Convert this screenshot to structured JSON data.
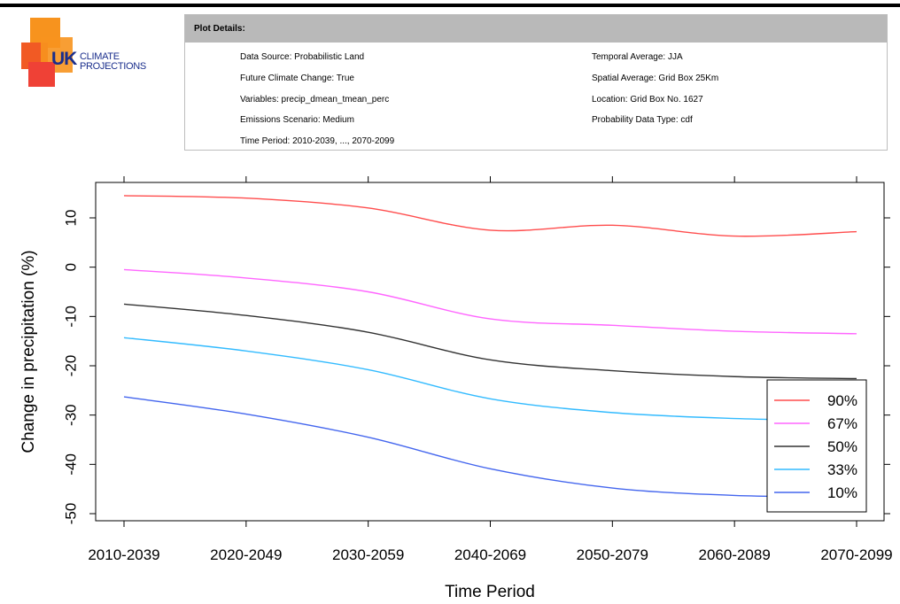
{
  "logo": {
    "uk": "UK",
    "line1": "CLIMATE",
    "line2": "PROJECTIONS",
    "colors": [
      "#f15a24",
      "#f7931e",
      "#ef4136"
    ]
  },
  "details": {
    "title": "Plot Details:",
    "left": [
      "Data Source: Probabilistic Land",
      "Future Climate Change: True",
      "Variables: precip_dmean_tmean_perc",
      "Emissions Scenario: Medium",
      "Time Period: 2010-2039, ..., 2070-2099"
    ],
    "right": [
      "Temporal Average: JJA",
      "Spatial Average: Grid Box 25Km",
      "Location: Grid Box No. 1627",
      "Probability Data Type: cdf"
    ]
  },
  "chart_data": {
    "type": "line",
    "xlabel": "Time Period",
    "ylabel": "Change in precipitation (%)",
    "categories": [
      "2010-2039",
      "2020-2049",
      "2030-2059",
      "2040-2069",
      "2050-2079",
      "2060-2089",
      "2070-2099"
    ],
    "ylim": [
      -52,
      17
    ],
    "yticks": [
      10,
      0,
      -10,
      -20,
      -30,
      -40,
      -50
    ],
    "legend_position": "bottom-right",
    "grid": false,
    "series": [
      {
        "name": "90%",
        "color": "#ff4d4d",
        "values": [
          14.5,
          14.0,
          12.0,
          7.5,
          8.5,
          6.3,
          7.2
        ]
      },
      {
        "name": "67%",
        "color": "#ff66ff",
        "values": [
          -0.5,
          -2.2,
          -5.0,
          -10.5,
          -11.8,
          -13.0,
          -13.5
        ]
      },
      {
        "name": "50%",
        "color": "#333333",
        "values": [
          -7.5,
          -9.8,
          -13.2,
          -18.8,
          -21.0,
          -22.2,
          -22.6
        ]
      },
      {
        "name": "33%",
        "color": "#33bbff",
        "values": [
          -14.3,
          -17.0,
          -20.8,
          -26.7,
          -29.5,
          -30.7,
          -31.2
        ]
      },
      {
        "name": "10%",
        "color": "#4466ee",
        "values": [
          -26.3,
          -29.8,
          -34.5,
          -40.9,
          -44.8,
          -46.3,
          -46.6
        ]
      }
    ]
  }
}
